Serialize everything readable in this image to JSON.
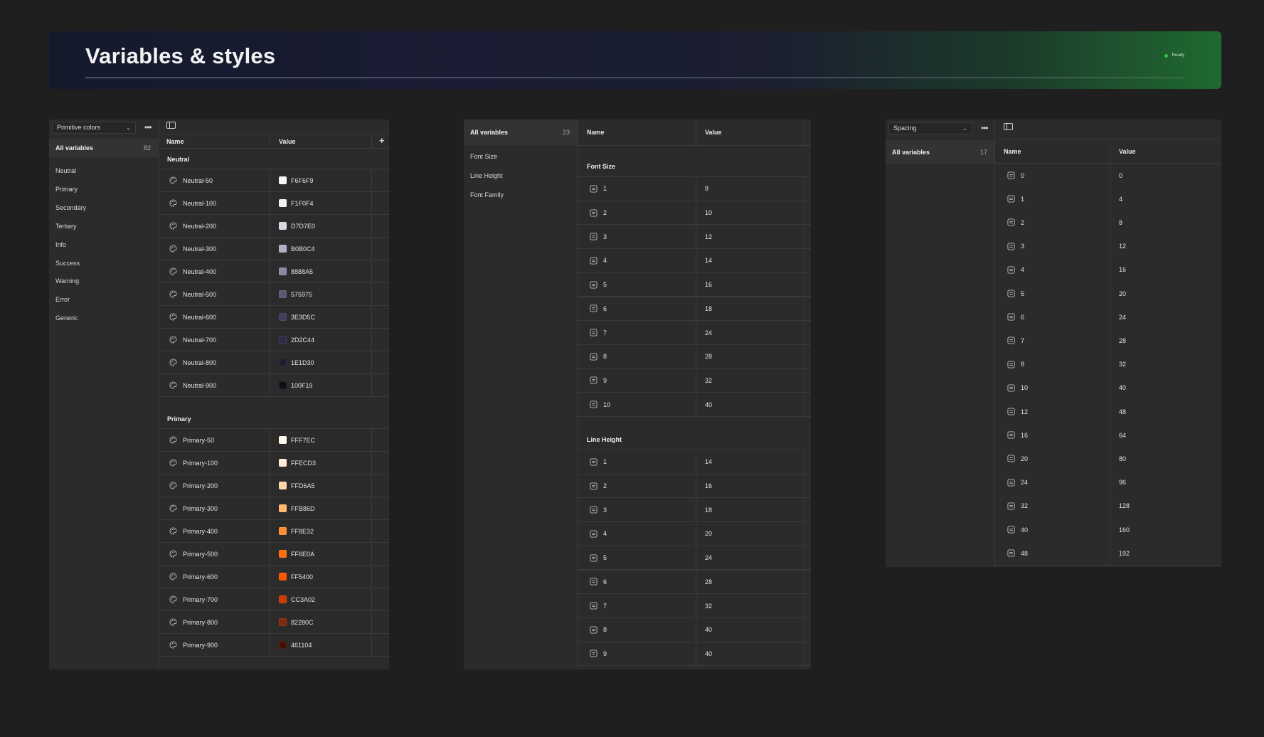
{
  "header": {
    "title": "Variables & styles",
    "status": "Ready",
    "status_color": "#35c24a"
  },
  "colors_panel": {
    "collection": "Primitive colors",
    "all_variables_label": "All variables",
    "all_variables_count": "82",
    "groups": [
      "Neutral",
      "Primary",
      "Secondary",
      "Tertiary",
      "Info",
      "Success",
      "Warning",
      "Error",
      "Generic"
    ],
    "columns": {
      "name": "Name",
      "value": "Value"
    },
    "sections": [
      {
        "title": "Neutral",
        "rows": [
          {
            "name": "Neutral-50",
            "value": "F6F6F9",
            "color": "#F6F6F9"
          },
          {
            "name": "Neutral-100",
            "value": "F1F0F4",
            "color": "#F1F0F4"
          },
          {
            "name": "Neutral-200",
            "value": "D7D7E0",
            "color": "#D7D7E0"
          },
          {
            "name": "Neutral-300",
            "value": "B0B0C4",
            "color": "#B0B0C4"
          },
          {
            "name": "Neutral-400",
            "value": "8888A5",
            "color": "#8888A5"
          },
          {
            "name": "Neutral-500",
            "value": "575975",
            "color": "#575975"
          },
          {
            "name": "Neutral-600",
            "value": "3E3D5C",
            "color": "#3E3D5C"
          },
          {
            "name": "Neutral-700",
            "value": "2D2C44",
            "color": "#2D2C44"
          },
          {
            "name": "Neutral-800",
            "value": "1E1D30",
            "color": "#1E1D30"
          },
          {
            "name": "Neutral-900",
            "value": "100F19",
            "color": "#100F19"
          }
        ]
      },
      {
        "title": "Primary",
        "rows": [
          {
            "name": "Primary-50",
            "value": "FFF7EC",
            "color": "#FFF7EC"
          },
          {
            "name": "Primary-100",
            "value": "FFECD3",
            "color": "#FFECD3"
          },
          {
            "name": "Primary-200",
            "value": "FFD6A5",
            "color": "#FFD6A5"
          },
          {
            "name": "Primary-300",
            "value": "FFB86D",
            "color": "#FFB86D"
          },
          {
            "name": "Primary-400",
            "value": "FF8E32",
            "color": "#FF8E32"
          },
          {
            "name": "Primary-500",
            "value": "FF6E0A",
            "color": "#FF6E0A"
          },
          {
            "name": "Primary-600",
            "value": "FF5400",
            "color": "#FF5400"
          },
          {
            "name": "Primary-700",
            "value": "CC3A02",
            "color": "#CC3A02"
          },
          {
            "name": "Primary-800",
            "value": "82280C",
            "color": "#82280C"
          },
          {
            "name": "Primary-900",
            "value": "461104",
            "color": "#461104"
          }
        ]
      }
    ]
  },
  "typography_panel": {
    "all_variables_label": "All variables",
    "all_variables_count": "23",
    "groups": [
      "Font Size",
      "Line Height",
      "Font Family"
    ],
    "columns": {
      "name": "Name",
      "value": "Value"
    },
    "sections": [
      {
        "title": "Font Size",
        "rows": [
          {
            "name": "1",
            "value": "8"
          },
          {
            "name": "2",
            "value": "10"
          },
          {
            "name": "3",
            "value": "12"
          },
          {
            "name": "4",
            "value": "14"
          },
          {
            "name": "5",
            "value": "16"
          },
          {
            "name": "6",
            "value": "18"
          },
          {
            "name": "7",
            "value": "24"
          },
          {
            "name": "8",
            "value": "28"
          },
          {
            "name": "9",
            "value": "32"
          },
          {
            "name": "10",
            "value": "40"
          }
        ]
      },
      {
        "title": "Line Height",
        "rows": [
          {
            "name": "1",
            "value": "14"
          },
          {
            "name": "2",
            "value": "16"
          },
          {
            "name": "3",
            "value": "18"
          },
          {
            "name": "4",
            "value": "20"
          },
          {
            "name": "5",
            "value": "24"
          },
          {
            "name": "6",
            "value": "28"
          },
          {
            "name": "7",
            "value": "32"
          },
          {
            "name": "8",
            "value": "40"
          },
          {
            "name": "9",
            "value": "40"
          }
        ]
      }
    ]
  },
  "spacing_panel": {
    "collection": "Spacing",
    "all_variables_label": "All variables",
    "all_variables_count": "17",
    "columns": {
      "name": "Name",
      "value": "Value"
    },
    "rows": [
      {
        "name": "0",
        "value": "0"
      },
      {
        "name": "1",
        "value": "4"
      },
      {
        "name": "2",
        "value": "8"
      },
      {
        "name": "3",
        "value": "12"
      },
      {
        "name": "4",
        "value": "16"
      },
      {
        "name": "5",
        "value": "20"
      },
      {
        "name": "6",
        "value": "24"
      },
      {
        "name": "7",
        "value": "28"
      },
      {
        "name": "8",
        "value": "32"
      },
      {
        "name": "10",
        "value": "40"
      },
      {
        "name": "12",
        "value": "48"
      },
      {
        "name": "16",
        "value": "64"
      },
      {
        "name": "20",
        "value": "80"
      },
      {
        "name": "24",
        "value": "96"
      },
      {
        "name": "32",
        "value": "128"
      },
      {
        "name": "40",
        "value": "160"
      },
      {
        "name": "48",
        "value": "192"
      }
    ]
  }
}
